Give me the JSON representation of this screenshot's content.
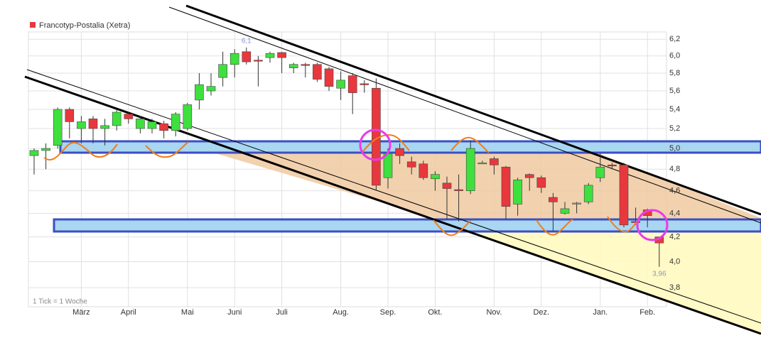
{
  "chart_data": {
    "type": "candlestick",
    "title": "Francotyp-Postalia (Xetra)",
    "footnote": "1 Tick = 1 Woche",
    "up_color": "#3ee03e",
    "down_color": "#e8383d",
    "title_color": "#e8383d",
    "log_scale": true,
    "grid": true,
    "categories": [
      null,
      null,
      null,
      null,
      "März",
      null,
      null,
      null,
      "April",
      null,
      null,
      null,
      null,
      "Mai",
      null,
      null,
      null,
      "Juni",
      null,
      null,
      null,
      "Juli",
      null,
      null,
      null,
      null,
      "Aug.",
      null,
      null,
      null,
      "Sep.",
      null,
      null,
      null,
      "Okt.",
      null,
      null,
      null,
      null,
      "Nov.",
      null,
      null,
      null,
      "Dez.",
      null,
      null,
      null,
      null,
      "Jan.",
      null,
      null,
      null,
      "Feb.",
      null
    ],
    "open": [
      4.93,
      4.98,
      5.03,
      5.4,
      5.2,
      5.3,
      5.2,
      5.23,
      5.35,
      5.2,
      5.2,
      5.25,
      5.18,
      5.2,
      5.5,
      5.6,
      5.75,
      5.9,
      6.05,
      5.95,
      5.98,
      6.04,
      5.86,
      5.9,
      5.9,
      5.85,
      5.63,
      5.77,
      5.68,
      5.63,
      4.72,
      5.0,
      4.87,
      4.85,
      4.71,
      4.67,
      4.61,
      4.6,
      4.86,
      4.9,
      4.82,
      4.48,
      4.75,
      4.72,
      4.54,
      4.4,
      4.49,
      4.5,
      4.72,
      4.84,
      4.84,
      4.33,
      4.43,
      4.2
    ],
    "high": [
      5.0,
      5.05,
      5.42,
      5.42,
      5.33,
      5.33,
      5.3,
      5.4,
      5.37,
      5.33,
      5.3,
      5.28,
      5.37,
      5.47,
      5.8,
      5.8,
      6.05,
      6.08,
      6.1,
      6.0,
      6.05,
      6.05,
      5.92,
      5.92,
      5.92,
      5.87,
      5.82,
      5.8,
      5.72,
      5.74,
      5.0,
      5.05,
      4.92,
      4.88,
      4.78,
      4.73,
      4.75,
      5.08,
      4.88,
      4.92,
      4.83,
      4.72,
      4.76,
      4.74,
      4.58,
      4.5,
      4.5,
      4.67,
      4.95,
      4.86,
      4.86,
      4.45,
      4.44,
      4.2
    ],
    "low": [
      4.75,
      4.8,
      5.0,
      5.1,
      5.05,
      5.05,
      5.03,
      5.18,
      5.25,
      5.15,
      5.15,
      5.1,
      5.12,
      5.18,
      5.4,
      5.55,
      5.65,
      5.75,
      5.9,
      5.65,
      5.92,
      5.8,
      5.8,
      5.75,
      5.7,
      5.6,
      5.5,
      5.35,
      5.58,
      4.6,
      4.62,
      4.85,
      4.75,
      4.7,
      4.6,
      4.35,
      4.33,
      4.57,
      4.85,
      4.75,
      4.35,
      4.38,
      4.6,
      4.58,
      4.25,
      4.39,
      4.4,
      4.48,
      4.68,
      4.8,
      4.28,
      4.3,
      4.28,
      3.96
    ],
    "close": [
      4.98,
      5.0,
      5.4,
      5.27,
      5.27,
      5.2,
      5.23,
      5.37,
      5.3,
      5.3,
      5.27,
      5.18,
      5.35,
      5.45,
      5.67,
      5.65,
      5.9,
      6.03,
      5.93,
      5.94,
      6.03,
      5.98,
      5.9,
      5.89,
      5.73,
      5.65,
      5.72,
      5.58,
      5.67,
      4.65,
      4.95,
      4.93,
      4.82,
      4.72,
      4.75,
      4.62,
      4.6,
      5.0,
      4.86,
      4.84,
      4.46,
      4.7,
      4.72,
      4.63,
      4.5,
      4.44,
      4.49,
      4.65,
      4.82,
      4.83,
      4.3,
      4.32,
      4.38,
      4.15
    ],
    "ylim": [
      3.66,
      6.29
    ],
    "yticks": [
      {
        "value": 6.2,
        "label": "6,2"
      },
      {
        "value": 6.0,
        "label": "6,0"
      },
      {
        "value": 5.8,
        "label": "5,8"
      },
      {
        "value": 5.6,
        "label": "5,6"
      },
      {
        "value": 5.4,
        "label": "5,4"
      },
      {
        "value": 5.2,
        "label": "5,2"
      },
      {
        "value": 5.0,
        "label": "5,0"
      },
      {
        "value": 4.8,
        "label": "4,8"
      },
      {
        "value": 4.6,
        "label": "4,6"
      },
      {
        "value": 4.4,
        "label": "4,4"
      },
      {
        "value": 4.2,
        "label": "4,2"
      },
      {
        "value": 4.0,
        "label": "4,0"
      },
      {
        "value": 3.8,
        "label": "3,8"
      }
    ],
    "annotations": [
      {
        "text": "6,1",
        "value": 6.1
      },
      {
        "text": "3,96",
        "value": 3.96
      }
    ]
  }
}
